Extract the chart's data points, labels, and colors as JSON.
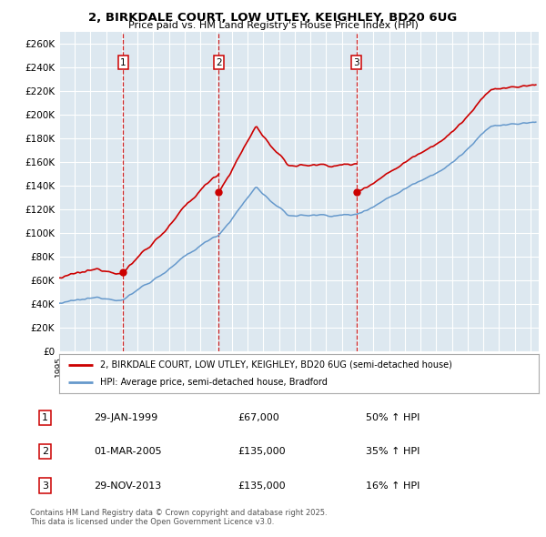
{
  "title_line1": "2, BIRKDALE COURT, LOW UTLEY, KEIGHLEY, BD20 6UG",
  "title_line2": "Price paid vs. HM Land Registry's House Price Index (HPI)",
  "legend_label_red": "2, BIRKDALE COURT, LOW UTLEY, KEIGHLEY, BD20 6UG (semi-detached house)",
  "legend_label_blue": "HPI: Average price, semi-detached house, Bradford",
  "sale1_date": "29-JAN-1999",
  "sale1_price": "£67,000",
  "sale1_hpi": "50% ↑ HPI",
  "sale2_date": "01-MAR-2005",
  "sale2_price": "£135,000",
  "sale2_hpi": "35% ↑ HPI",
  "sale3_date": "29-NOV-2013",
  "sale3_price": "£135,000",
  "sale3_hpi": "16% ↑ HPI",
  "footer_line1": "Contains HM Land Registry data © Crown copyright and database right 2025.",
  "footer_line2": "This data is licensed under the Open Government Licence v3.0.",
  "red_color": "#cc0000",
  "blue_color": "#6699cc",
  "bg_color": "#dde8f0",
  "grid_color": "#ffffff",
  "vline_color": "#cc0000",
  "sale_times": [
    1999.08,
    2005.17,
    2013.92
  ],
  "sale_prices": [
    67000,
    135000,
    135000
  ],
  "ylim": [
    0,
    270000
  ],
  "xlim_start": 1995.0,
  "xlim_end": 2025.5
}
